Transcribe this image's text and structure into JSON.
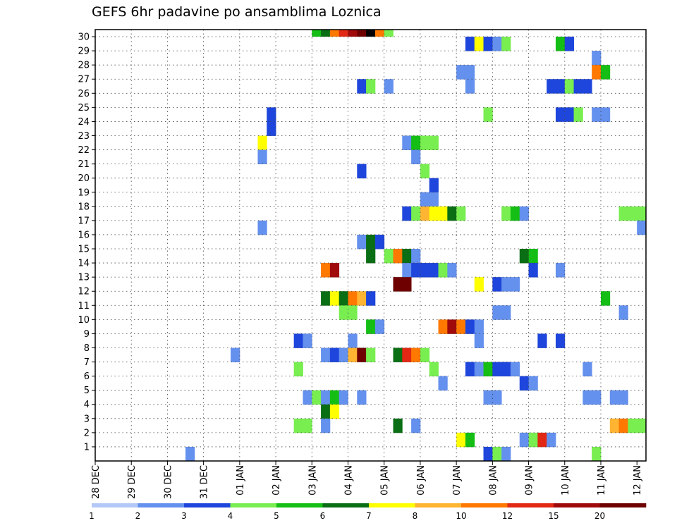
{
  "chart_data": {
    "type": "heatmap",
    "title": "GEFS 6hr padavine po ansamblima Loznica",
    "x_tick_labels": [
      "28 DEC",
      "29 DEC",
      "30 DEC",
      "31 DEC",
      "01 JAN",
      "02 JAN",
      "03 JAN",
      "04 JAN",
      "05 JAN",
      "06 JAN",
      "07 JAN",
      "08 JAN",
      "09 JAN",
      "10 JAN",
      "11 JAN",
      "12 JAN"
    ],
    "y_tick_labels": [
      "1",
      "2",
      "3",
      "4",
      "5",
      "6",
      "7",
      "8",
      "9",
      "10",
      "11",
      "12",
      "13",
      "14",
      "15",
      "16",
      "17",
      "18",
      "19",
      "20",
      "21",
      "22",
      "23",
      "24",
      "25",
      "26",
      "27",
      "28",
      "29",
      "30"
    ],
    "time_steps": 61,
    "members": 30,
    "grid": true,
    "legend": {
      "placement": "bottom",
      "labels": [
        "1",
        "2",
        "3",
        "4",
        "5",
        "6",
        "7",
        "8",
        "10",
        "12",
        "15",
        "20"
      ],
      "colors": [
        "#b4c8f8",
        "#6490ee",
        "#1e46dc",
        "#78ee50",
        "#14be14",
        "#0a6e14",
        "#ffff00",
        "#ffb432",
        "#ff7800",
        "#e12814",
        "#a00a0a",
        "#6e0000"
      ]
    },
    "cells": [
      [
        30,
        24,
        4
      ],
      [
        30,
        25,
        5
      ],
      [
        30,
        26,
        8
      ],
      [
        30,
        27,
        9
      ],
      [
        30,
        28,
        10
      ],
      [
        30,
        29,
        11
      ],
      [
        30,
        30,
        12
      ],
      [
        30,
        31,
        8
      ],
      [
        30,
        32,
        3
      ],
      [
        29,
        41,
        2
      ],
      [
        29,
        42,
        6
      ],
      [
        29,
        43,
        2
      ],
      [
        29,
        44,
        1
      ],
      [
        29,
        45,
        3
      ],
      [
        29,
        51,
        4
      ],
      [
        29,
        52,
        2
      ],
      [
        28,
        55,
        1
      ],
      [
        27,
        40,
        1
      ],
      [
        27,
        41,
        1
      ],
      [
        27,
        55,
        8
      ],
      [
        27,
        56,
        4
      ],
      [
        26,
        29,
        2
      ],
      [
        26,
        30,
        3
      ],
      [
        26,
        32,
        1
      ],
      [
        26,
        41,
        1
      ],
      [
        26,
        50,
        2
      ],
      [
        26,
        51,
        2
      ],
      [
        26,
        52,
        3
      ],
      [
        26,
        53,
        2
      ],
      [
        26,
        54,
        2
      ],
      [
        24,
        19,
        2
      ],
      [
        24,
        43,
        3
      ],
      [
        24,
        51,
        2
      ],
      [
        24,
        52,
        2
      ],
      [
        24,
        53,
        3
      ],
      [
        24,
        55,
        1
      ],
      [
        24,
        56,
        1
      ],
      [
        23,
        19,
        2
      ],
      [
        22,
        18,
        6
      ],
      [
        22,
        34,
        1
      ],
      [
        22,
        35,
        4
      ],
      [
        22,
        36,
        3
      ],
      [
        22,
        37,
        3
      ],
      [
        21,
        18,
        1
      ],
      [
        21,
        35,
        1
      ],
      [
        20,
        29,
        2
      ],
      [
        20,
        36,
        3
      ],
      [
        19,
        37,
        2
      ],
      [
        18,
        36,
        1
      ],
      [
        18,
        37,
        1
      ],
      [
        17,
        34,
        2
      ],
      [
        17,
        35,
        3
      ],
      [
        17,
        36,
        7
      ],
      [
        17,
        37,
        6
      ],
      [
        17,
        38,
        6
      ],
      [
        17,
        39,
        5
      ],
      [
        17,
        40,
        3
      ],
      [
        17,
        45,
        3
      ],
      [
        17,
        46,
        4
      ],
      [
        17,
        47,
        1
      ],
      [
        17,
        58,
        3
      ],
      [
        17,
        59,
        3
      ],
      [
        17,
        60,
        3
      ],
      [
        16,
        18,
        1
      ],
      [
        16,
        60,
        1
      ],
      [
        15,
        29,
        1
      ],
      [
        15,
        30,
        5
      ],
      [
        15,
        31,
        2
      ],
      [
        14,
        30,
        5
      ],
      [
        14,
        32,
        3
      ],
      [
        14,
        33,
        8
      ],
      [
        14,
        34,
        5
      ],
      [
        14,
        35,
        1
      ],
      [
        14,
        47,
        5
      ],
      [
        14,
        48,
        4
      ],
      [
        13,
        25,
        8
      ],
      [
        13,
        26,
        10
      ],
      [
        13,
        34,
        1
      ],
      [
        13,
        35,
        2
      ],
      [
        13,
        36,
        2
      ],
      [
        13,
        37,
        2
      ],
      [
        13,
        38,
        3
      ],
      [
        13,
        39,
        1
      ],
      [
        13,
        48,
        2
      ],
      [
        13,
        51,
        1
      ],
      [
        12,
        33,
        11
      ],
      [
        12,
        34,
        11
      ],
      [
        12,
        42,
        6
      ],
      [
        12,
        44,
        2
      ],
      [
        12,
        45,
        1
      ],
      [
        12,
        46,
        1
      ],
      [
        11,
        25,
        5
      ],
      [
        11,
        26,
        6
      ],
      [
        11,
        27,
        5
      ],
      [
        11,
        28,
        8
      ],
      [
        11,
        29,
        7
      ],
      [
        11,
        30,
        2
      ],
      [
        11,
        56,
        4
      ],
      [
        10,
        27,
        3
      ],
      [
        10,
        28,
        3
      ],
      [
        10,
        44,
        1
      ],
      [
        10,
        45,
        1
      ],
      [
        10,
        58,
        1
      ],
      [
        9,
        30,
        4
      ],
      [
        9,
        31,
        1
      ],
      [
        9,
        38,
        8
      ],
      [
        9,
        39,
        10
      ],
      [
        9,
        40,
        8
      ],
      [
        9,
        41,
        2
      ],
      [
        9,
        42,
        1
      ],
      [
        8,
        22,
        2
      ],
      [
        8,
        23,
        1
      ],
      [
        8,
        28,
        1
      ],
      [
        8,
        42,
        1
      ],
      [
        8,
        49,
        2
      ],
      [
        8,
        51,
        2
      ],
      [
        7,
        15,
        1
      ],
      [
        7,
        25,
        1
      ],
      [
        7,
        26,
        2
      ],
      [
        7,
        27,
        1
      ],
      [
        7,
        28,
        7
      ],
      [
        7,
        29,
        11
      ],
      [
        7,
        30,
        3
      ],
      [
        7,
        33,
        5
      ],
      [
        7,
        34,
        9
      ],
      [
        7,
        35,
        8
      ],
      [
        7,
        36,
        3
      ],
      [
        6,
        22,
        3
      ],
      [
        6,
        37,
        3
      ],
      [
        6,
        41,
        2
      ],
      [
        6,
        42,
        1
      ],
      [
        6,
        43,
        4
      ],
      [
        6,
        44,
        2
      ],
      [
        6,
        45,
        2
      ],
      [
        6,
        46,
        1
      ],
      [
        6,
        54,
        1
      ],
      [
        5,
        38,
        1
      ],
      [
        5,
        47,
        2
      ],
      [
        5,
        48,
        1
      ],
      [
        4,
        23,
        1
      ],
      [
        4,
        24,
        3
      ],
      [
        4,
        25,
        1
      ],
      [
        4,
        26,
        4
      ],
      [
        4,
        27,
        1
      ],
      [
        4,
        29,
        1
      ],
      [
        4,
        43,
        1
      ],
      [
        4,
        44,
        1
      ],
      [
        4,
        54,
        1
      ],
      [
        4,
        55,
        1
      ],
      [
        4,
        57,
        1
      ],
      [
        4,
        58,
        1
      ],
      [
        3,
        25,
        5
      ],
      [
        3,
        26,
        6
      ],
      [
        2,
        22,
        3
      ],
      [
        2,
        23,
        3
      ],
      [
        2,
        25,
        1
      ],
      [
        2,
        33,
        5
      ],
      [
        2,
        35,
        1
      ],
      [
        2,
        57,
        7
      ],
      [
        2,
        58,
        8
      ],
      [
        2,
        59,
        3
      ],
      [
        2,
        60,
        3
      ],
      [
        1,
        40,
        6
      ],
      [
        1,
        41,
        4
      ],
      [
        1,
        47,
        1
      ],
      [
        1,
        48,
        3
      ],
      [
        1,
        49,
        9
      ],
      [
        1,
        50,
        1
      ],
      [
        0,
        10,
        1
      ],
      [
        0,
        43,
        2
      ],
      [
        0,
        44,
        3
      ],
      [
        0,
        45,
        1
      ],
      [
        0,
        55,
        3
      ]
    ]
  }
}
